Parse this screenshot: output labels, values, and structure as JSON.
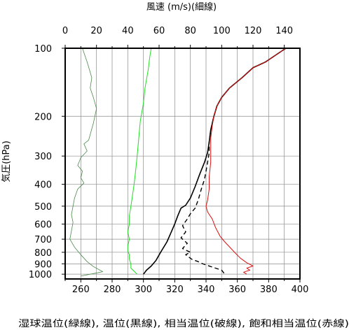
{
  "chart_data": {
    "type": "line",
    "title": "",
    "top_axis_label": "風速 (m/s)(細線)",
    "left_axis_label": "気圧(hPa)",
    "bottom_axis_label": "湿球温位(緑線), 温位(黒線), 相当温位(破線), 飽和相当温位(赤線)",
    "x_bottom": {
      "lim": [
        250,
        400
      ],
      "ticks": [
        260,
        280,
        300,
        320,
        340,
        360,
        380,
        400
      ],
      "grid_every": 10,
      "unit": "K"
    },
    "x_top": {
      "lim": [
        0,
        150
      ],
      "ticks": [
        0,
        20,
        40,
        60,
        80,
        100,
        120,
        140
      ],
      "unit": "m/s"
    },
    "y": {
      "scale": "log",
      "inverted": true,
      "lim": [
        1050,
        100
      ],
      "ticks": [
        100,
        200,
        300,
        400,
        500,
        600,
        700,
        800,
        900,
        1000
      ],
      "unit": "hPa"
    },
    "grid": true,
    "series": [
      {
        "name": "風速",
        "axis": "top",
        "color": "#4a8a4a",
        "width": 0.8,
        "dash": null,
        "points": [
          [
            11,
            100
          ],
          [
            14,
            115
          ],
          [
            17,
            135
          ],
          [
            16,
            150
          ],
          [
            18,
            165
          ],
          [
            20,
            185
          ],
          [
            18,
            215
          ],
          [
            15,
            255
          ],
          [
            12,
            265
          ],
          [
            14,
            285
          ],
          [
            10,
            305
          ],
          [
            8,
            330
          ],
          [
            11,
            350
          ],
          [
            10,
            375
          ],
          [
            12,
            395
          ],
          [
            8,
            420
          ],
          [
            6,
            460
          ],
          [
            5,
            500
          ],
          [
            4,
            545
          ],
          [
            5,
            590
          ],
          [
            4,
            645
          ],
          [
            3,
            700
          ],
          [
            6,
            760
          ],
          [
            10,
            820
          ],
          [
            14,
            880
          ],
          [
            18,
            925
          ],
          [
            24,
            975
          ],
          [
            16,
            1000
          ],
          [
            10,
            1020
          ]
        ]
      },
      {
        "name": "湿球温位",
        "axis": "bottom",
        "color": "#22dd22",
        "width": 1,
        "dash": null,
        "points": [
          [
            305,
            100
          ],
          [
            304,
            110
          ],
          [
            303,
            125
          ],
          [
            301,
            150
          ],
          [
            300,
            175
          ],
          [
            298,
            210
          ],
          [
            297,
            250
          ],
          [
            296,
            300
          ],
          [
            295,
            350
          ],
          [
            294,
            400
          ],
          [
            293,
            450
          ],
          [
            292,
            500
          ],
          [
            291,
            550
          ],
          [
            291,
            600
          ],
          [
            290,
            650
          ],
          [
            291,
            700
          ],
          [
            290,
            750
          ],
          [
            290,
            790
          ],
          [
            291,
            820
          ],
          [
            291,
            860
          ],
          [
            292,
            900
          ],
          [
            292,
            940
          ],
          [
            294,
            970
          ],
          [
            296,
            1000
          ]
        ]
      },
      {
        "name": "温位",
        "axis": "bottom",
        "color": "#000000",
        "width": 1.6,
        "dash": null,
        "points": [
          [
            391,
            100
          ],
          [
            378,
            115
          ],
          [
            370,
            122
          ],
          [
            363,
            135
          ],
          [
            355,
            150
          ],
          [
            350,
            165
          ],
          [
            347,
            180
          ],
          [
            345,
            200
          ],
          [
            343,
            230
          ],
          [
            342,
            260
          ],
          [
            341,
            290
          ],
          [
            339,
            320
          ],
          [
            336,
            360
          ],
          [
            333,
            410
          ],
          [
            330,
            460
          ],
          [
            327,
            495
          ],
          [
            324,
            510
          ],
          [
            322,
            550
          ],
          [
            320,
            600
          ],
          [
            317,
            670
          ],
          [
            315,
            720
          ],
          [
            311,
            800
          ],
          [
            308,
            870
          ],
          [
            305,
            920
          ],
          [
            302,
            960
          ],
          [
            300,
            1000
          ]
        ]
      },
      {
        "name": "相当温位",
        "axis": "bottom",
        "color": "#000000",
        "width": 1.4,
        "dash": [
          6,
          4
        ],
        "points": [
          [
            391,
            100
          ],
          [
            378,
            115
          ],
          [
            370,
            122
          ],
          [
            363,
            135
          ],
          [
            355,
            150
          ],
          [
            350,
            165
          ],
          [
            347,
            180
          ],
          [
            345,
            200
          ],
          [
            343,
            230
          ],
          [
            342,
            260
          ],
          [
            342,
            290
          ],
          [
            341,
            320
          ],
          [
            340,
            350
          ],
          [
            339,
            380
          ],
          [
            337,
            420
          ],
          [
            335,
            470
          ],
          [
            333,
            510
          ],
          [
            330,
            540
          ],
          [
            328,
            570
          ],
          [
            325,
            610
          ],
          [
            327,
            650
          ],
          [
            324,
            690
          ],
          [
            328,
            730
          ],
          [
            325,
            770
          ],
          [
            330,
            800
          ],
          [
            327,
            820
          ],
          [
            331,
            860
          ],
          [
            335,
            880
          ],
          [
            338,
            900
          ],
          [
            344,
            930
          ],
          [
            350,
            960
          ],
          [
            352,
            1000
          ]
        ]
      },
      {
        "name": "飽和相当温位",
        "axis": "bottom",
        "color": "#dd1111",
        "width": 1,
        "dash": null,
        "points": [
          [
            391,
            100
          ],
          [
            378,
            115
          ],
          [
            370,
            122
          ],
          [
            363,
            135
          ],
          [
            355,
            150
          ],
          [
            350,
            165
          ],
          [
            347,
            180
          ],
          [
            345,
            200
          ],
          [
            344,
            220
          ],
          [
            343,
            250
          ],
          [
            343,
            280
          ],
          [
            343,
            320
          ],
          [
            342,
            370
          ],
          [
            342,
            420
          ],
          [
            341,
            470
          ],
          [
            340,
            500
          ],
          [
            341,
            530
          ],
          [
            344,
            570
          ],
          [
            346,
            620
          ],
          [
            349,
            680
          ],
          [
            352,
            720
          ],
          [
            356,
            770
          ],
          [
            359,
            810
          ],
          [
            362,
            850
          ],
          [
            366,
            890
          ],
          [
            370,
            920
          ],
          [
            366,
            940
          ],
          [
            368,
            960
          ],
          [
            364,
            980
          ],
          [
            366,
            1000
          ]
        ]
      }
    ]
  }
}
